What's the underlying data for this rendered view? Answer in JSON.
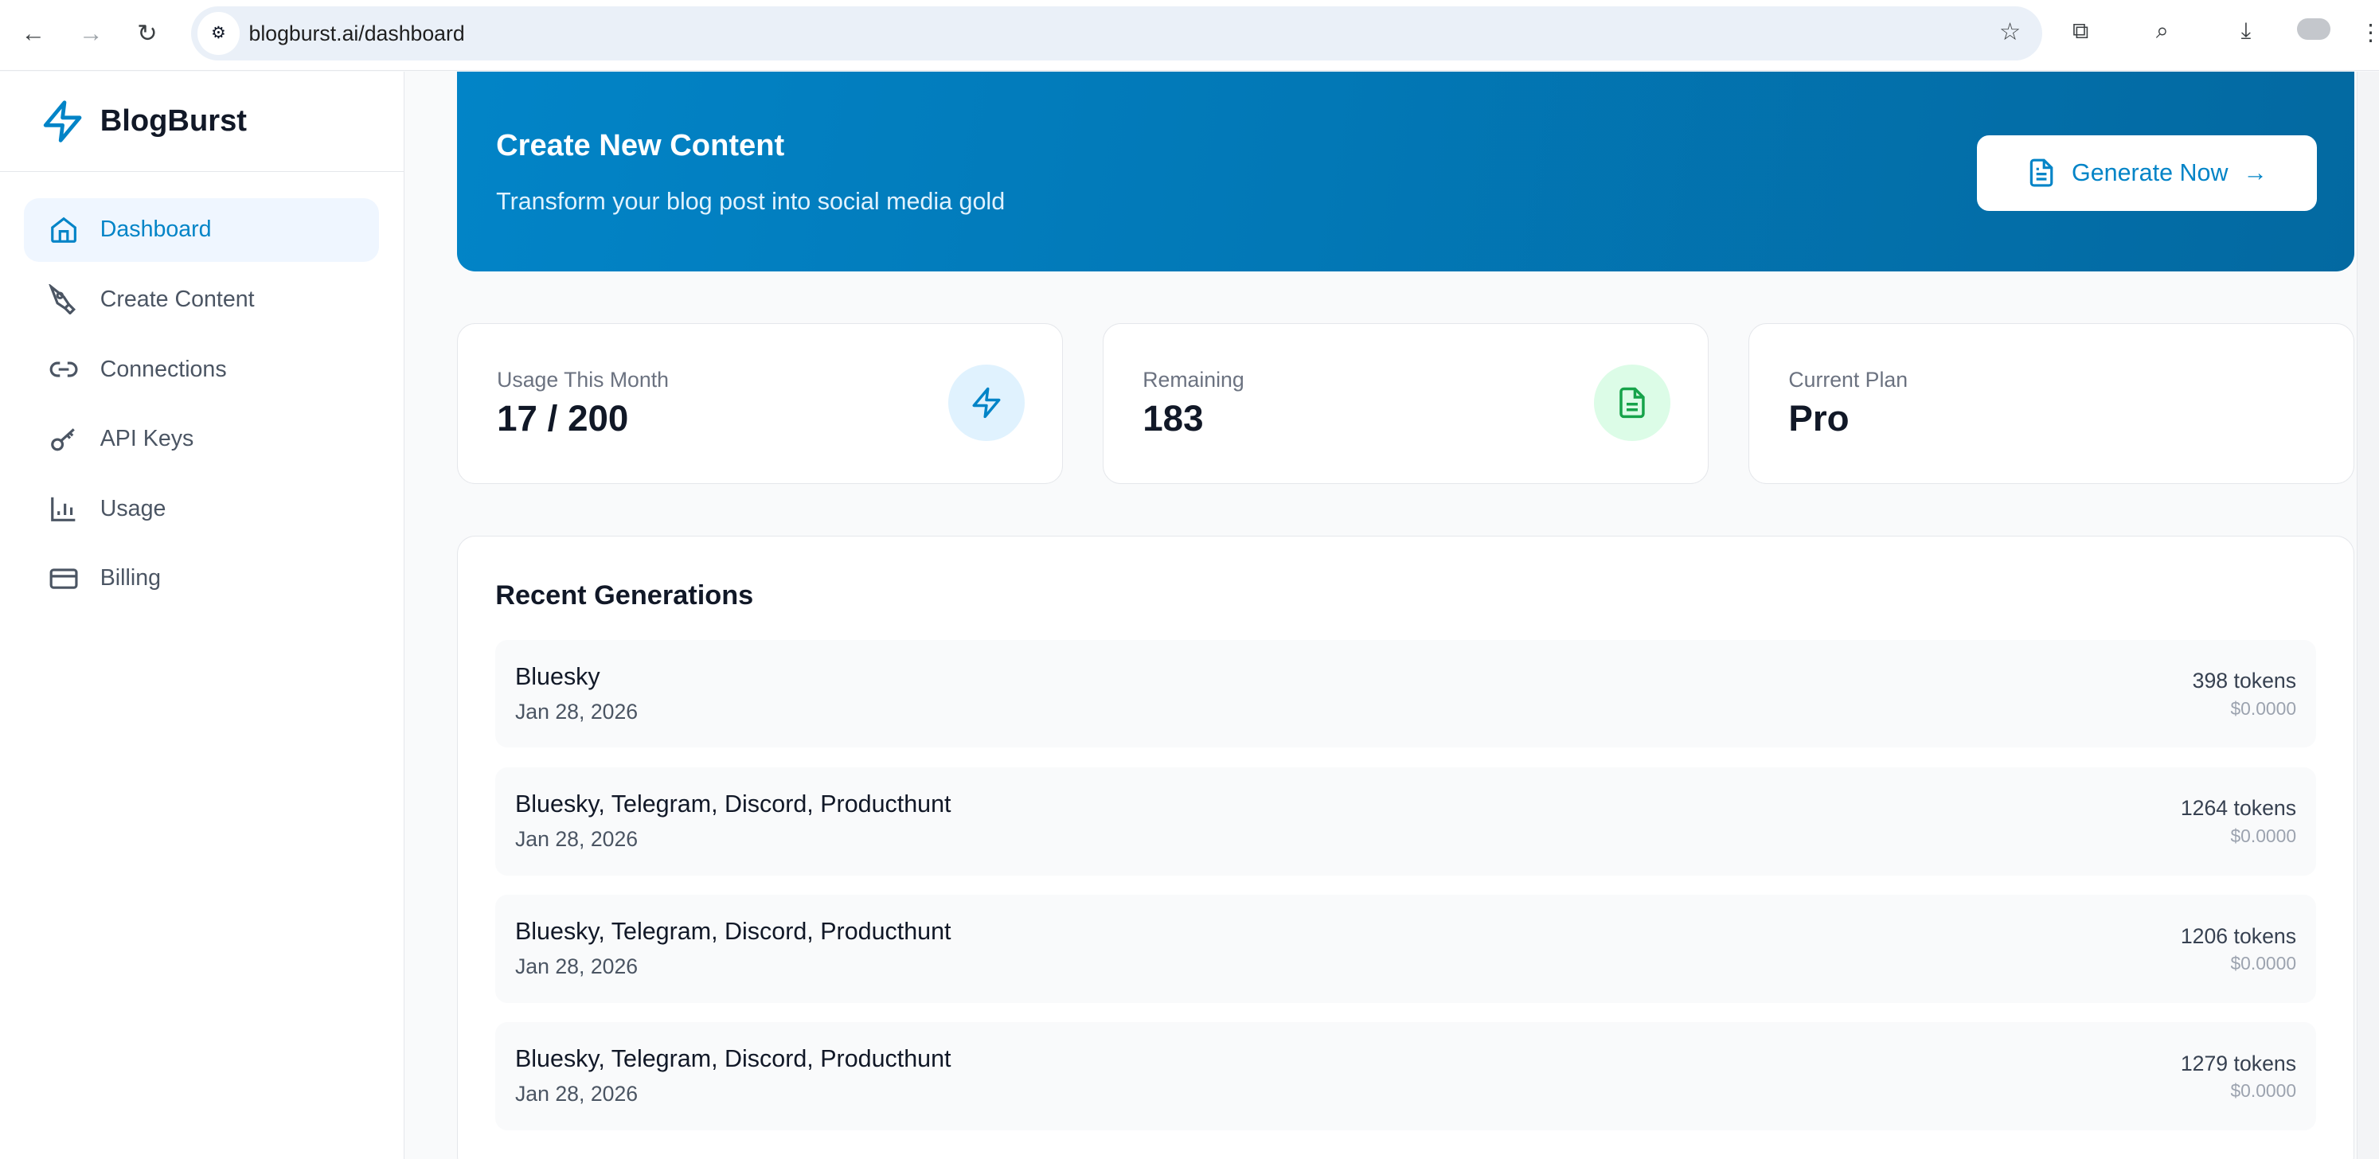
{
  "browser": {
    "url": "blogburst.ai/dashboard"
  },
  "brand": {
    "name": "BlogBurst",
    "accent": "#0284c7"
  },
  "sidebar": {
    "items": [
      {
        "label": "Dashboard",
        "icon": "home-icon",
        "active": true
      },
      {
        "label": "Create Content",
        "icon": "pen-tool-icon"
      },
      {
        "label": "Connections",
        "icon": "link-icon"
      },
      {
        "label": "API Keys",
        "icon": "key-icon"
      },
      {
        "label": "Usage",
        "icon": "bar-chart-icon"
      },
      {
        "label": "Billing",
        "icon": "credit-card-icon"
      }
    ]
  },
  "hero": {
    "title": "Create New Content",
    "subtitle": "Transform your blog post into social media gold",
    "button": "Generate Now"
  },
  "stats": [
    {
      "label": "Usage This Month",
      "value": "17 / 200",
      "icon": "zap-icon"
    },
    {
      "label": "Remaining",
      "value": "183",
      "icon": "file-text-icon"
    },
    {
      "label": "Current Plan",
      "value": "Pro"
    }
  ],
  "recent": {
    "title": "Recent Generations",
    "items": [
      {
        "platforms": "Bluesky",
        "date": "Jan 28, 2026",
        "tokens": "398 tokens",
        "cost": "$0.0000"
      },
      {
        "platforms": "Bluesky, Telegram, Discord, Producthunt",
        "date": "Jan 28, 2026",
        "tokens": "1264 tokens",
        "cost": "$0.0000"
      },
      {
        "platforms": "Bluesky, Telegram, Discord, Producthunt",
        "date": "Jan 28, 2026",
        "tokens": "1206 tokens",
        "cost": "$0.0000"
      },
      {
        "platforms": "Bluesky, Telegram, Discord, Producthunt",
        "date": "Jan 28, 2026",
        "tokens": "1279 tokens",
        "cost": "$0.0000"
      }
    ]
  }
}
